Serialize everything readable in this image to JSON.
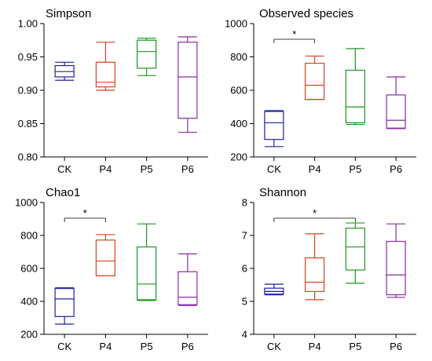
{
  "chart_data": [
    {
      "type": "box",
      "title": "Simpson",
      "categories": [
        "CK",
        "P4",
        "P5",
        "P6"
      ],
      "ylim": [
        0.8,
        1.0
      ],
      "yticks": [
        "0.80",
        "0.85",
        "0.90",
        "0.95",
        "1.00"
      ],
      "yticks_values": [
        0.8,
        0.85,
        0.9,
        0.95,
        1.0
      ],
      "boxes": [
        {
          "min": 0.915,
          "q1": 0.92,
          "median": 0.928,
          "q3": 0.937,
          "max": 0.942,
          "color": "#1f1fa8"
        },
        {
          "min": 0.9,
          "q1": 0.905,
          "median": 0.912,
          "q3": 0.942,
          "max": 0.972,
          "color": "#d2451e"
        },
        {
          "min": 0.922,
          "q1": 0.933,
          "median": 0.958,
          "q3": 0.975,
          "max": 0.978,
          "color": "#1a9a1a"
        },
        {
          "min": 0.837,
          "q1": 0.858,
          "median": 0.92,
          "q3": 0.972,
          "max": 0.98,
          "color": "#8a2aa8"
        }
      ],
      "significance": []
    },
    {
      "type": "box",
      "title": "Observed species",
      "categories": [
        "CK",
        "P4",
        "P5",
        "P6"
      ],
      "ylim": [
        200,
        1000
      ],
      "yticks": [
        "200",
        "400",
        "600",
        "800",
        "1000"
      ],
      "yticks_values": [
        200,
        400,
        600,
        800,
        1000
      ],
      "boxes": [
        {
          "min": 262,
          "q1": 305,
          "median": 405,
          "q3": 473,
          "max": 478,
          "color": "#1f1fa8"
        },
        {
          "min": 545,
          "q1": 545,
          "median": 630,
          "q3": 762,
          "max": 805,
          "color": "#d2451e"
        },
        {
          "min": 395,
          "q1": 405,
          "median": 500,
          "q3": 720,
          "max": 850,
          "color": "#1a9a1a"
        },
        {
          "min": 370,
          "q1": 373,
          "median": 420,
          "q3": 572,
          "max": 680,
          "color": "#8a2aa8"
        }
      ],
      "significance": [
        {
          "from": 0,
          "to": 1,
          "label": "*"
        }
      ]
    },
    {
      "type": "box",
      "title": "Chao1",
      "categories": [
        "CK",
        "P4",
        "P5",
        "P6"
      ],
      "ylim": [
        200,
        1000
      ],
      "yticks": [
        "200",
        "400",
        "600",
        "800",
        "1000"
      ],
      "yticks_values": [
        200,
        400,
        600,
        800,
        1000
      ],
      "boxes": [
        {
          "min": 262,
          "q1": 308,
          "median": 415,
          "q3": 478,
          "max": 482,
          "color": "#1f1fa8"
        },
        {
          "min": 555,
          "q1": 555,
          "median": 645,
          "q3": 772,
          "max": 805,
          "color": "#d2451e"
        },
        {
          "min": 405,
          "q1": 410,
          "median": 505,
          "q3": 730,
          "max": 870,
          "color": "#1a9a1a"
        },
        {
          "min": 375,
          "q1": 380,
          "median": 425,
          "q3": 580,
          "max": 688,
          "color": "#8a2aa8"
        }
      ],
      "significance": [
        {
          "from": 0,
          "to": 1,
          "label": "*"
        }
      ]
    },
    {
      "type": "box",
      "title": "Shannon",
      "categories": [
        "CK",
        "P4",
        "P5",
        "P6"
      ],
      "ylim": [
        4,
        8
      ],
      "yticks": [
        "4",
        "5",
        "6",
        "7",
        "8"
      ],
      "yticks_values": [
        4,
        5,
        6,
        7,
        8
      ],
      "boxes": [
        {
          "min": 5.2,
          "q1": 5.22,
          "median": 5.3,
          "q3": 5.4,
          "max": 5.52,
          "color": "#1f1fa8"
        },
        {
          "min": 5.05,
          "q1": 5.3,
          "median": 5.58,
          "q3": 6.32,
          "max": 7.05,
          "color": "#d2451e"
        },
        {
          "min": 5.55,
          "q1": 5.95,
          "median": 6.65,
          "q3": 7.22,
          "max": 7.38,
          "color": "#1a9a1a"
        },
        {
          "min": 5.12,
          "q1": 5.2,
          "median": 5.8,
          "q3": 6.82,
          "max": 7.35,
          "color": "#8a2aa8"
        }
      ],
      "significance": [
        {
          "from": 0,
          "to": 2,
          "label": "*"
        }
      ]
    }
  ]
}
